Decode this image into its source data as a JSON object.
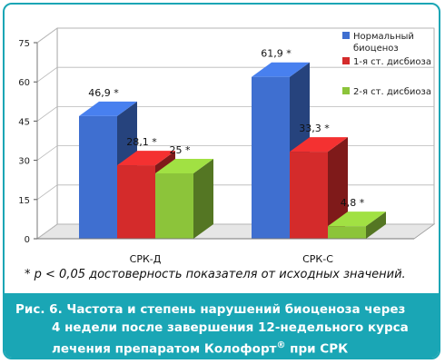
{
  "chart_data": {
    "type": "bar",
    "categories": [
      "СРК-Д",
      "СРК-С"
    ],
    "series": [
      {
        "name": "Нормальный биоценоз",
        "values": [
          46.9,
          61.9
        ],
        "labels": [
          "46,9 *",
          "61,9 *"
        ],
        "color": "#3f6fd0"
      },
      {
        "name": "1-я ст. дисбиоза",
        "values": [
          28.1,
          33.3
        ],
        "labels": [
          "28,1 *",
          "33,3 *"
        ],
        "color": "#d42b2b"
      },
      {
        "name": "2-я ст. дисбиоза",
        "values": [
          25,
          4.8
        ],
        "labels": [
          "25 *",
          "4,8 *"
        ],
        "color": "#8cc43a"
      }
    ],
    "legend": [
      "Нормальный биоценоз",
      "1-я ст. дисбиоза",
      "2-я ст. дисбиоза"
    ],
    "legend_placement": "top-right",
    "yticks": [
      0,
      15,
      30,
      45,
      60,
      75
    ],
    "ylim": [
      0,
      75
    ],
    "grid": true,
    "chart_style": "3d-bars"
  },
  "footnote": "* р < 0,05 достоверность показателя от исходных значений.",
  "caption": {
    "line1": "Рис. 6. Частота и степень нарушений биоценоза через",
    "line2": "4 недели после завершения 12-недельного курса",
    "line3_prefix": "лечения препаратом Колофорт",
    "line3_mark": "®",
    "line3_suffix": " при СРК"
  }
}
